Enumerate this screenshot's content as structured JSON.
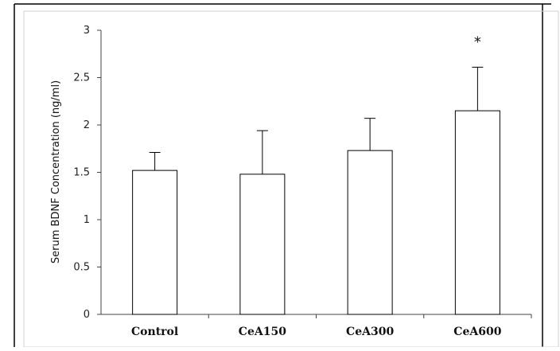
{
  "chart_data": {
    "type": "bar",
    "title": "",
    "xlabel": "",
    "ylabel": "Serum BDNF Concentration (ng/ml)",
    "categories": [
      "Control",
      "CeA150",
      "CeA300",
      "CeA600"
    ],
    "values": [
      1.52,
      1.48,
      1.73,
      2.15
    ],
    "error_upper": [
      0.19,
      0.46,
      0.34,
      0.46
    ],
    "annotations": [
      "",
      "",
      "",
      "*"
    ],
    "ylim": [
      0,
      3
    ],
    "yticks": [
      0,
      0.5,
      1,
      1.5,
      2,
      2.5,
      3
    ],
    "ytick_labels": [
      "0",
      "0.5",
      "1",
      "1.5",
      "2",
      "2.5",
      "3"
    ],
    "grid": false,
    "legend": "none",
    "bar_fill": "#ffffff",
    "bar_stroke": "#000000"
  }
}
